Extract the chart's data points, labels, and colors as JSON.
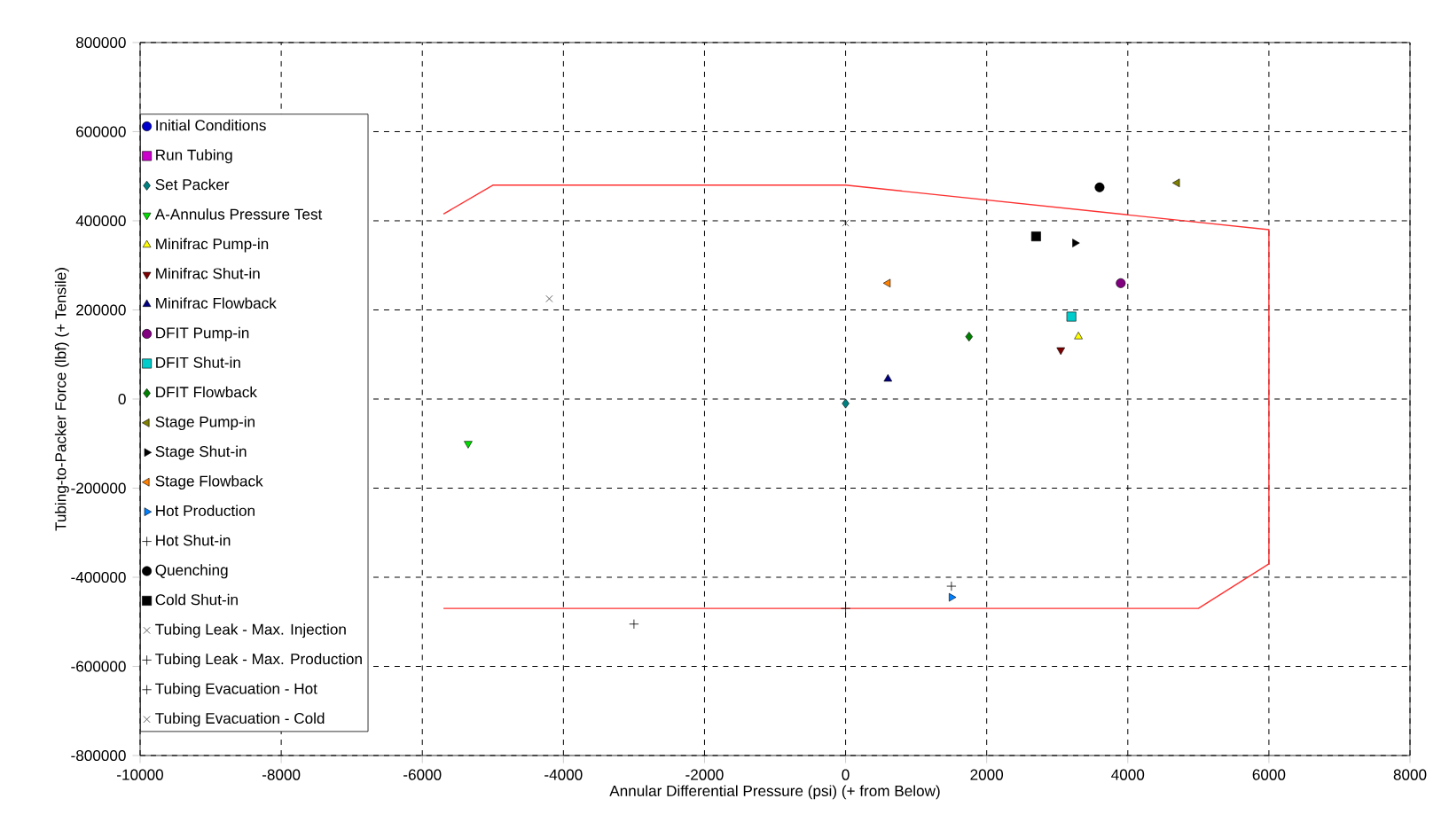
{
  "chart_data": {
    "type": "scatter",
    "xlabel": "Annular Differential Pressure (psi) (+ from Below)",
    "ylabel": "Tubing-to-Packer Force (lbf) (+ Tensile)",
    "xlim": [
      -10000,
      8000
    ],
    "ylim": [
      -800000,
      800000
    ],
    "xticks": [
      -10000,
      -8000,
      -6000,
      -4000,
      -2000,
      0,
      2000,
      4000,
      6000,
      8000
    ],
    "yticks": [
      -800000,
      -600000,
      -400000,
      -200000,
      0,
      200000,
      400000,
      600000,
      800000
    ],
    "grid": true,
    "legend": "left",
    "series": [
      {
        "name": "Initial Conditions",
        "color": "#0000cc",
        "marker": "circle",
        "x": [
          null
        ],
        "values": [
          null
        ]
      },
      {
        "name": "Run Tubing",
        "color": "#cc00cc",
        "marker": "square",
        "x": [
          null
        ],
        "values": [
          null
        ]
      },
      {
        "name": "Set Packer",
        "color": "#008080",
        "marker": "diamond",
        "x": [
          0
        ],
        "values": [
          -10000
        ]
      },
      {
        "name": "A-Annulus Pressure Test",
        "color": "#00dd00",
        "marker": "triangle_down",
        "x": [
          -5350
        ],
        "values": [
          -100000
        ]
      },
      {
        "name": "Minifrac Pump-in",
        "color": "#ffff00",
        "marker": "triangle",
        "x": [
          3300
        ],
        "values": [
          140000
        ]
      },
      {
        "name": "Minifrac Shut-in",
        "color": "#800000",
        "marker": "triangle_down",
        "x": [
          3050
        ],
        "values": [
          110000
        ]
      },
      {
        "name": "Minifrac Flowback",
        "color": "#000080",
        "marker": "triangle",
        "x": [
          600
        ],
        "values": [
          45000
        ]
      },
      {
        "name": "DFIT Pump-in",
        "color": "#800080",
        "marker": "circle",
        "x": [
          3900
        ],
        "values": [
          260000
        ]
      },
      {
        "name": "DFIT Shut-in",
        "color": "#00cccc",
        "marker": "square",
        "x": [
          3200
        ],
        "values": [
          185000
        ]
      },
      {
        "name": "DFIT Flowback",
        "color": "#008000",
        "marker": "diamond",
        "x": [
          1750
        ],
        "values": [
          140000
        ]
      },
      {
        "name": "Stage Pump-in",
        "color": "#808000",
        "marker": "triangle_left",
        "x": [
          4700
        ],
        "values": [
          485000
        ]
      },
      {
        "name": "Stage Shut-in",
        "color": "#000000",
        "marker": "triangle_right",
        "x": [
          3250
        ],
        "values": [
          350000
        ]
      },
      {
        "name": "Stage Flowback",
        "color": "#ff8000",
        "marker": "triangle_left",
        "x": [
          600
        ],
        "values": [
          260000
        ]
      },
      {
        "name": "Hot Production",
        "color": "#0080ff",
        "marker": "triangle_right",
        "x": [
          1500
        ],
        "values": [
          -445000
        ]
      },
      {
        "name": "Hot Shut-in",
        "color": "#000000",
        "marker": "plus",
        "x": [
          1500
        ],
        "values": [
          -420000
        ]
      },
      {
        "name": "Quenching",
        "color": "#000000",
        "marker": "circle",
        "x": [
          3600
        ],
        "values": [
          475000
        ]
      },
      {
        "name": "Cold Shut-in",
        "color": "#000000",
        "marker": "square",
        "x": [
          2700
        ],
        "values": [
          365000
        ]
      },
      {
        "name": "Tubing Leak - Max. Injection",
        "color": "#404040",
        "marker": "cross",
        "x": [
          -4200
        ],
        "values": [
          225000
        ]
      },
      {
        "name": "Tubing Leak - Max. Production",
        "color": "#000000",
        "marker": "plus",
        "x": [
          -3000
        ],
        "values": [
          -505000
        ]
      },
      {
        "name": "Tubing Evacuation - Hot",
        "color": "#000000",
        "marker": "plus",
        "x": [
          0
        ],
        "values": [
          -470000
        ]
      },
      {
        "name": "Tubing Evacuation - Cold",
        "color": "#404040",
        "marker": "cross",
        "x": [
          0
        ],
        "values": [
          395000
        ]
      },
      {
        "type": "line",
        "color": "#ff3030",
        "line_style": "solid",
        "marker": "none",
        "x": [
          -5700,
          -5000,
          0,
          6000,
          6000,
          5000,
          -5700
        ],
        "values": [
          415000,
          480000,
          480000,
          380000,
          -370000,
          -470000,
          -470000
        ]
      }
    ]
  }
}
